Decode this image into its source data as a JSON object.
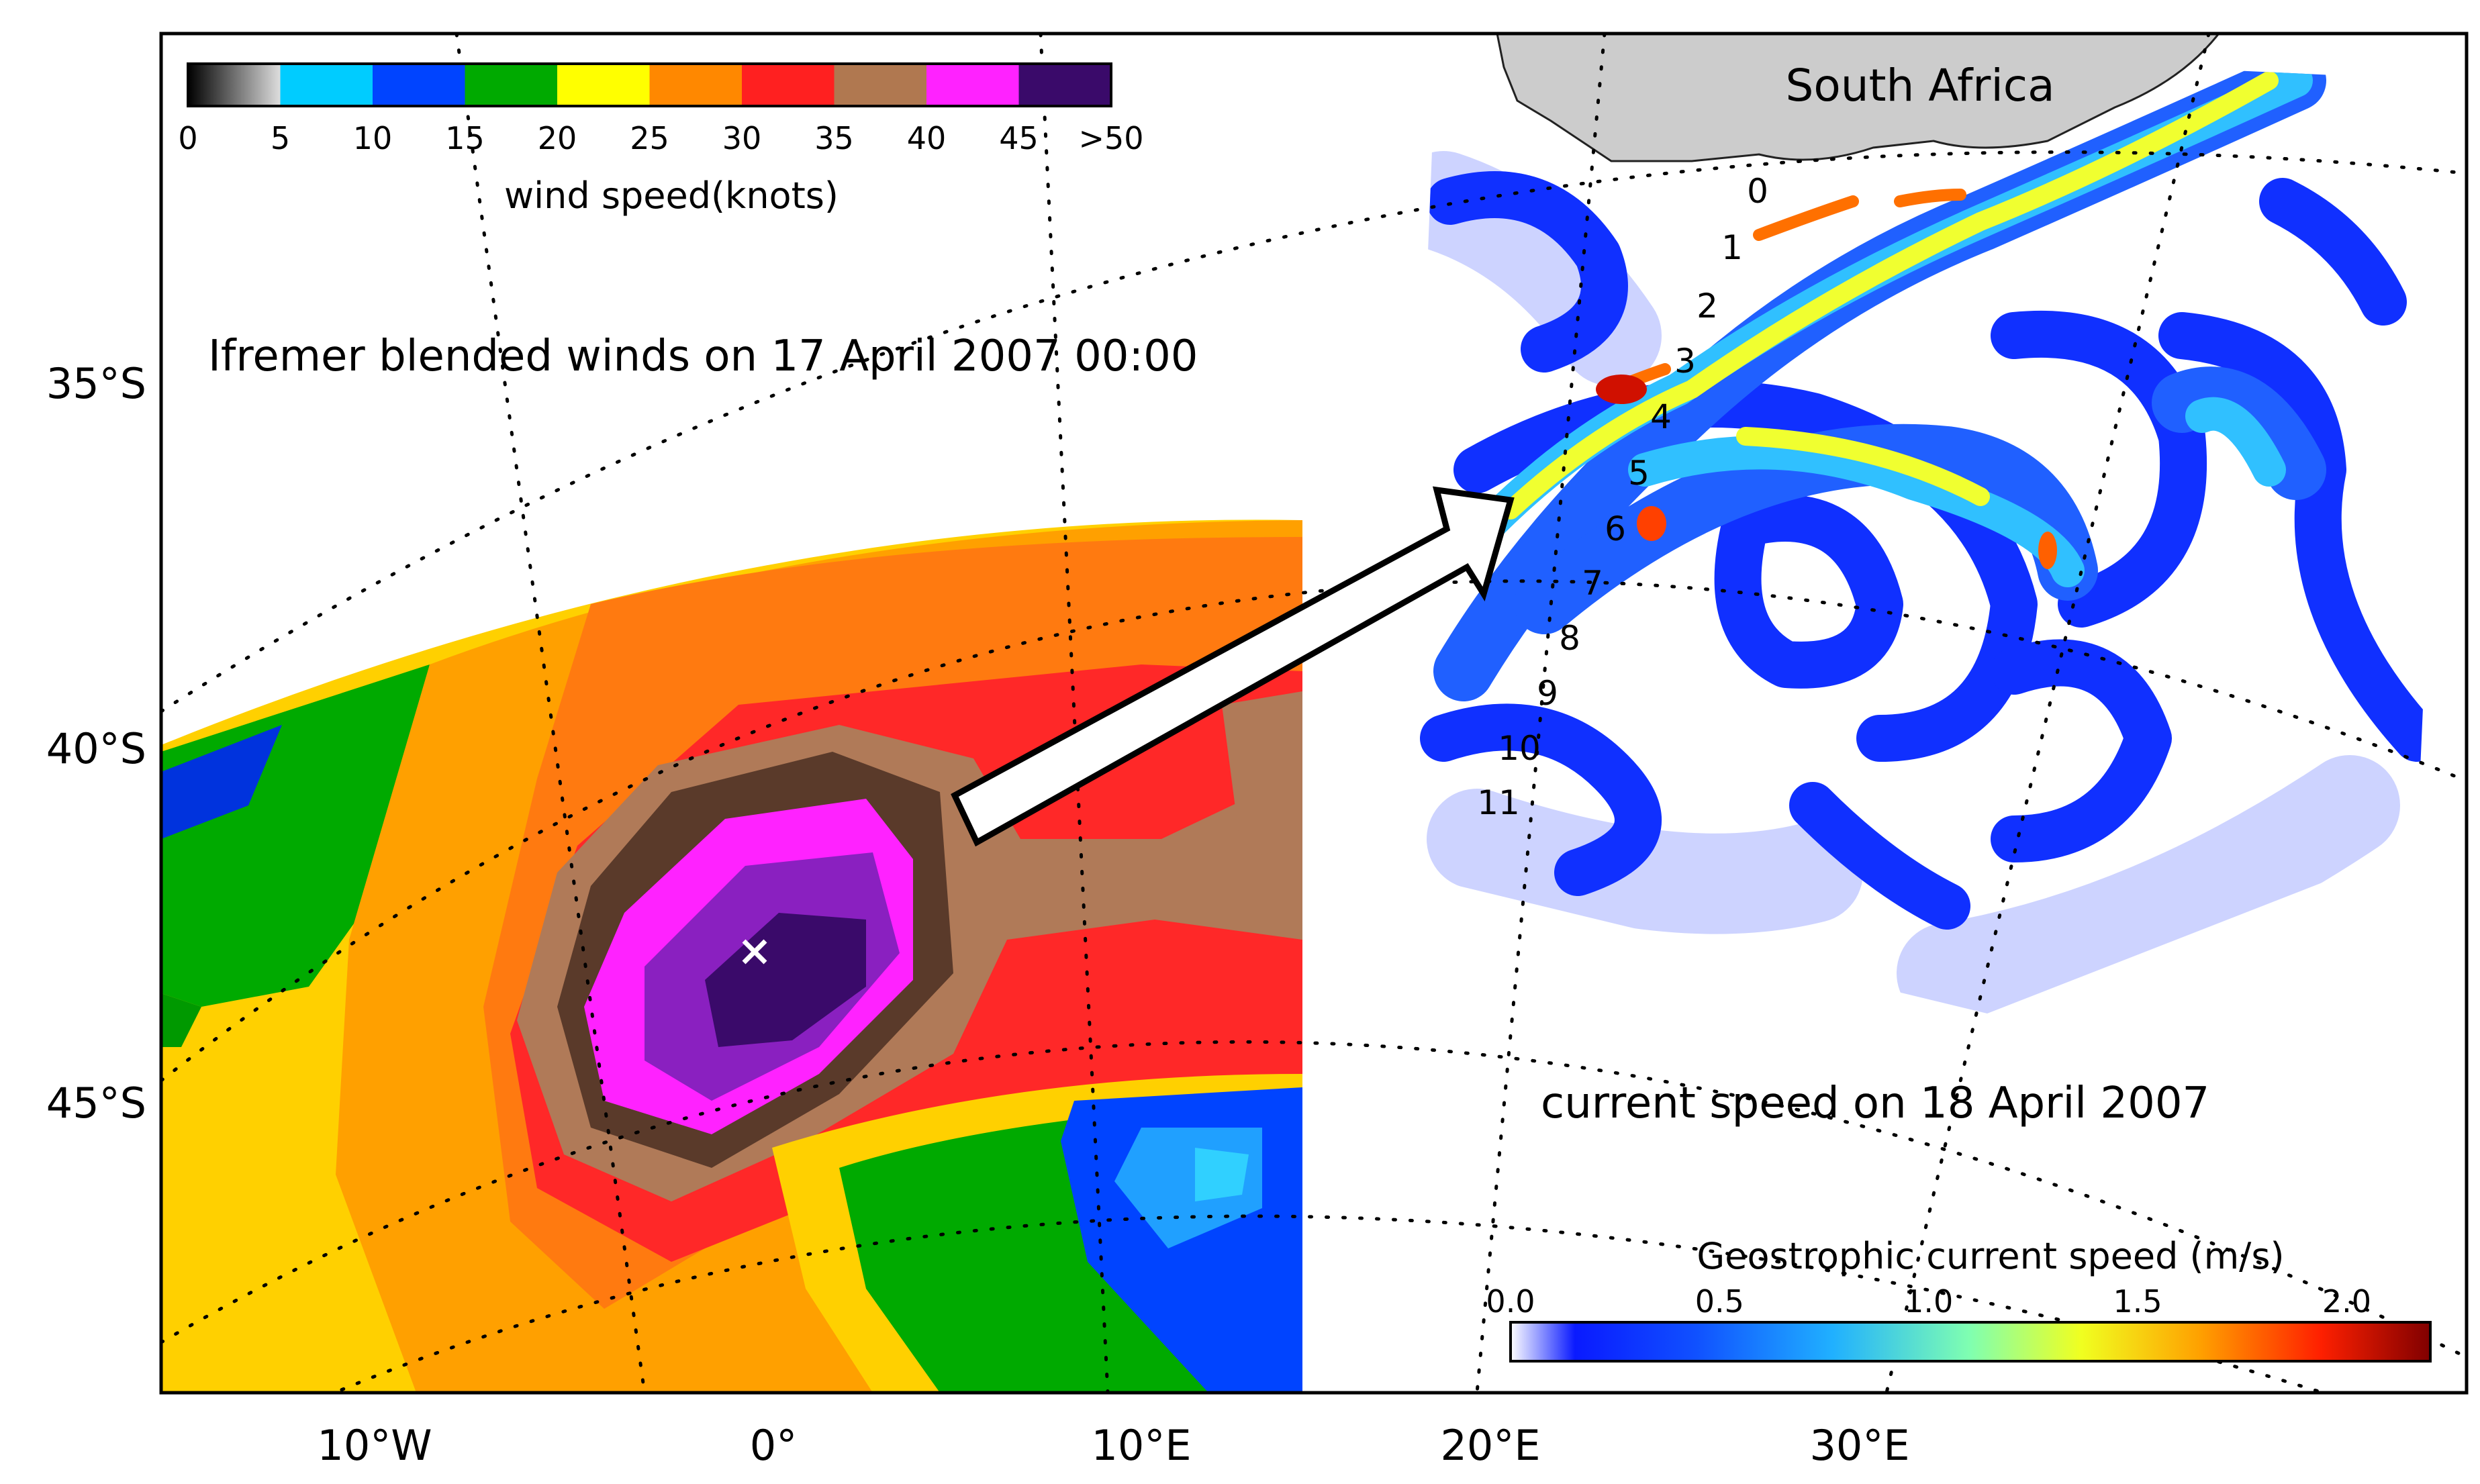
{
  "wind_panel": {
    "title": "Ifremer blended winds on 17 April 2007 00:00",
    "colorbar": {
      "label": "wind speed(knots)",
      "ticks": [
        "0",
        "5",
        "10",
        "15",
        "20",
        "25",
        "30",
        "35",
        "40",
        "45",
        ">50"
      ],
      "colors": [
        "#555555",
        "#00ccff",
        "#0044ff",
        "#00aa00",
        "#ffff00",
        "#ff8800",
        "#ff2020",
        "#b07850",
        "#ff22ff",
        "#3a0a6a"
      ]
    },
    "center_marker": "x-icon"
  },
  "current_panel": {
    "title": "current speed on 18 April 2007",
    "land_label": "South Africa",
    "station_labels": [
      "0",
      "1",
      "2",
      "3",
      "4",
      "5",
      "6",
      "7",
      "8",
      "9",
      "10",
      "11"
    ],
    "colorbar": {
      "label": "Geostrophic current speed (m/s)",
      "ticks": [
        "0.0",
        "0.5",
        "1.0",
        "1.5",
        "2.0"
      ]
    }
  },
  "axes": {
    "lat_labels": [
      "35°S",
      "40°S",
      "45°S"
    ],
    "lon_labels": [
      "10°W",
      "0°",
      "10°E",
      "20°E",
      "30°E"
    ]
  }
}
